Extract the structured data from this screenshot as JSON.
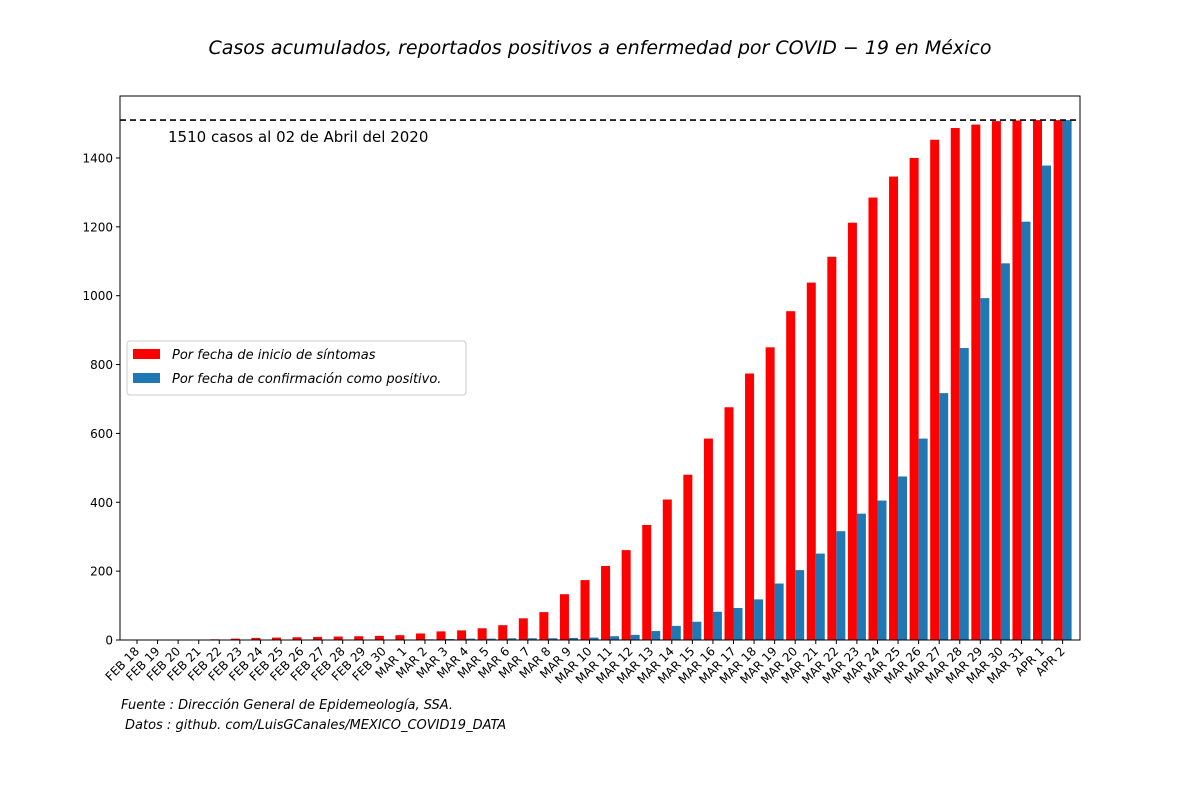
{
  "chart_data": {
    "type": "bar",
    "title": "Casos acumulados, reportados positivos a enfermedad por COVID − 19 en México",
    "xlabel": "",
    "ylabel": "",
    "ylim": [
      0,
      1580
    ],
    "yticks": [
      0,
      200,
      400,
      600,
      800,
      1000,
      1200,
      1400
    ],
    "categories": [
      "FEB 18",
      "FEB 19",
      "FEB 20",
      "FEB 21",
      "FEB 22",
      "FEB 23",
      "FEB 24",
      "FEB 25",
      "FEB 26",
      "FEB 27",
      "FEB 28",
      "FEB 29",
      "FEB 30",
      "MAR 1",
      "MAR 2",
      "MAR 3",
      "MAR 4",
      "MAR 5",
      "MAR 6",
      "MAR 7",
      "MAR 8",
      "MAR 9",
      "MAR 10",
      "MAR 11",
      "MAR 12",
      "MAR 13",
      "MAR 14",
      "MAR 15",
      "MAR 16",
      "MAR 17",
      "MAR 18",
      "MAR 19",
      "MAR 20",
      "MAR 21",
      "MAR 22",
      "MAR 23",
      "MAR 24",
      "MAR 25",
      "MAR 26",
      "MAR 27",
      "MAR 28",
      "MAR 29",
      "MAR 30",
      "MAR 31",
      "APR 1",
      "APR 2"
    ],
    "series": [
      {
        "name": "Por fecha de inicio de síntomas",
        "color": "#ff0000",
        "values": [
          0,
          0,
          1,
          1,
          2,
          4,
          6,
          7,
          8,
          9,
          10,
          11,
          12,
          14,
          19,
          25,
          28,
          34,
          43,
          63,
          81,
          133,
          174,
          215,
          261,
          334,
          408,
          480,
          585,
          676,
          774,
          850,
          955,
          1038,
          1113,
          1212,
          1285,
          1346,
          1400,
          1453,
          1487,
          1497,
          1507,
          1509,
          1510,
          1510
        ]
      },
      {
        "name": "Por fecha de confirmación como positivo.",
        "color": "#1f77b4",
        "values": [
          0,
          0,
          0,
          0,
          0,
          0,
          0,
          0,
          0,
          0,
          0,
          0,
          1,
          1,
          2,
          3,
          4,
          4,
          5,
          5,
          5,
          6,
          7,
          11,
          15,
          26,
          41,
          53,
          82,
          93,
          118,
          164,
          203,
          251,
          316,
          367,
          405,
          475,
          585,
          717,
          848,
          993,
          1094,
          1215,
          1378,
          1510
        ]
      }
    ],
    "annotations": {
      "reference_line_value": 1510,
      "reference_text": "1510 casos al 02 de Abril del 2020",
      "source_line": "Fuente :  Dirección General de Epidemeología, SSA.",
      "data_line": "Datos :  github. com/LuisGCanales/MEXICO_COVID19_DATA"
    },
    "legend_position": "center-left",
    "grid": false
  }
}
